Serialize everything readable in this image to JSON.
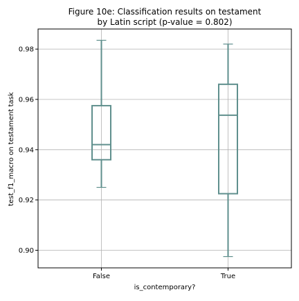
{
  "chart_data": {
    "type": "box",
    "title_lines": [
      "Figure 10e: Classification results on testament",
      "by Latin script (p-value = 0.802)"
    ],
    "xlabel": "is_contemporary?",
    "ylabel": "test_f1_macro on testament task",
    "categories": [
      "False",
      "True"
    ],
    "boxes": [
      {
        "category": "False",
        "whisker_low": 0.925,
        "q1": 0.936,
        "median": 0.942,
        "q3": 0.9575,
        "whisker_high": 0.9835
      },
      {
        "category": "True",
        "whisker_low": 0.8975,
        "q1": 0.9225,
        "median": 0.9537,
        "q3": 0.966,
        "whisker_high": 0.982
      }
    ],
    "ylim": [
      0.893,
      0.988
    ],
    "yticks": [
      0.9,
      0.92,
      0.94,
      0.96,
      0.98
    ],
    "ytick_labels": [
      "0.90",
      "0.92",
      "0.94",
      "0.96",
      "0.98"
    ],
    "grid": true,
    "box_color": "#5f8f8d",
    "grid_color": "#b0b0b0"
  }
}
